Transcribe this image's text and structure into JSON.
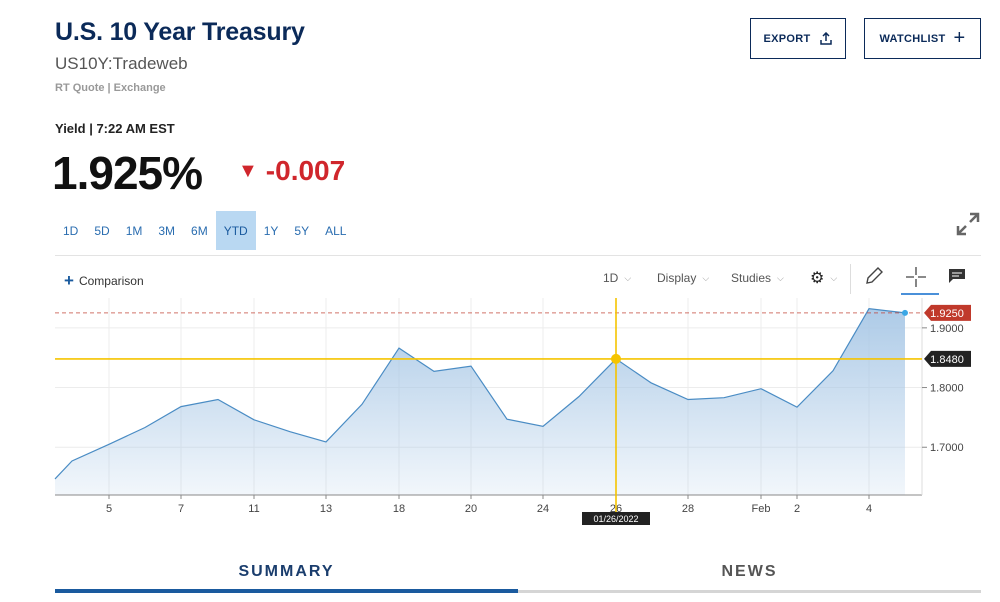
{
  "header": {
    "title": "U.S. 10 Year Treasury",
    "symbol": "US10Y:Tradeweb",
    "quote_source": "RT Quote | Exchange",
    "export_label": "EXPORT",
    "watchlist_label": "WATCHLIST"
  },
  "quote": {
    "yield_label": "Yield | 7:22 AM EST",
    "price": "1.925%",
    "change": "-0.007",
    "change_color": "#d0262c"
  },
  "ranges": [
    "1D",
    "5D",
    "1M",
    "3M",
    "6M",
    "YTD",
    "1Y",
    "5Y",
    "ALL"
  ],
  "active_range": "YTD",
  "toolbar": {
    "comparison_label": "Comparison",
    "interval_label": "1D",
    "display_label": "Display",
    "studies_label": "Studies"
  },
  "tabs": {
    "summary": "SUMMARY",
    "news": "NEWS"
  },
  "chart_data": {
    "type": "area",
    "x": [
      "Jan 3",
      "Jan 4",
      "Jan 5",
      "Jan 6",
      "Jan 7",
      "Jan 10",
      "Jan 11",
      "Jan 12",
      "Jan 13",
      "Jan 14",
      "Jan 18",
      "Jan 19",
      "Jan 20",
      "Jan 21",
      "Jan 24",
      "Jan 25",
      "Jan 26",
      "Jan 27",
      "Jan 28",
      "Jan 31",
      "Feb 1",
      "Feb 2",
      "Feb 3",
      "Feb 4",
      "Feb 5"
    ],
    "values": [
      1.647,
      1.677,
      1.705,
      1.733,
      1.768,
      1.78,
      1.746,
      1.726,
      1.709,
      1.772,
      1.866,
      1.827,
      1.836,
      1.747,
      1.735,
      1.785,
      1.848,
      1.808,
      1.78,
      1.783,
      1.798,
      1.767,
      1.828,
      1.932,
      1.925
    ],
    "x_tick_labels": [
      "5",
      "7",
      "11",
      "13",
      "18",
      "20",
      "24",
      "26",
      "28",
      "Feb",
      "2",
      "4"
    ],
    "y_tick_labels": [
      "1.7000",
      "1.8000",
      "1.9000"
    ],
    "ylim": [
      1.62,
      1.95
    ],
    "last_price_label": "1.9250",
    "crosshair_value_label": "1.8480",
    "crosshair_date_label": "01/26/2022",
    "line_color": "#4a8cc4",
    "fill_color": "#a9c8e6",
    "last_price_color": "#c0392b",
    "crosshair_color": "#f5c400",
    "grid": true
  }
}
